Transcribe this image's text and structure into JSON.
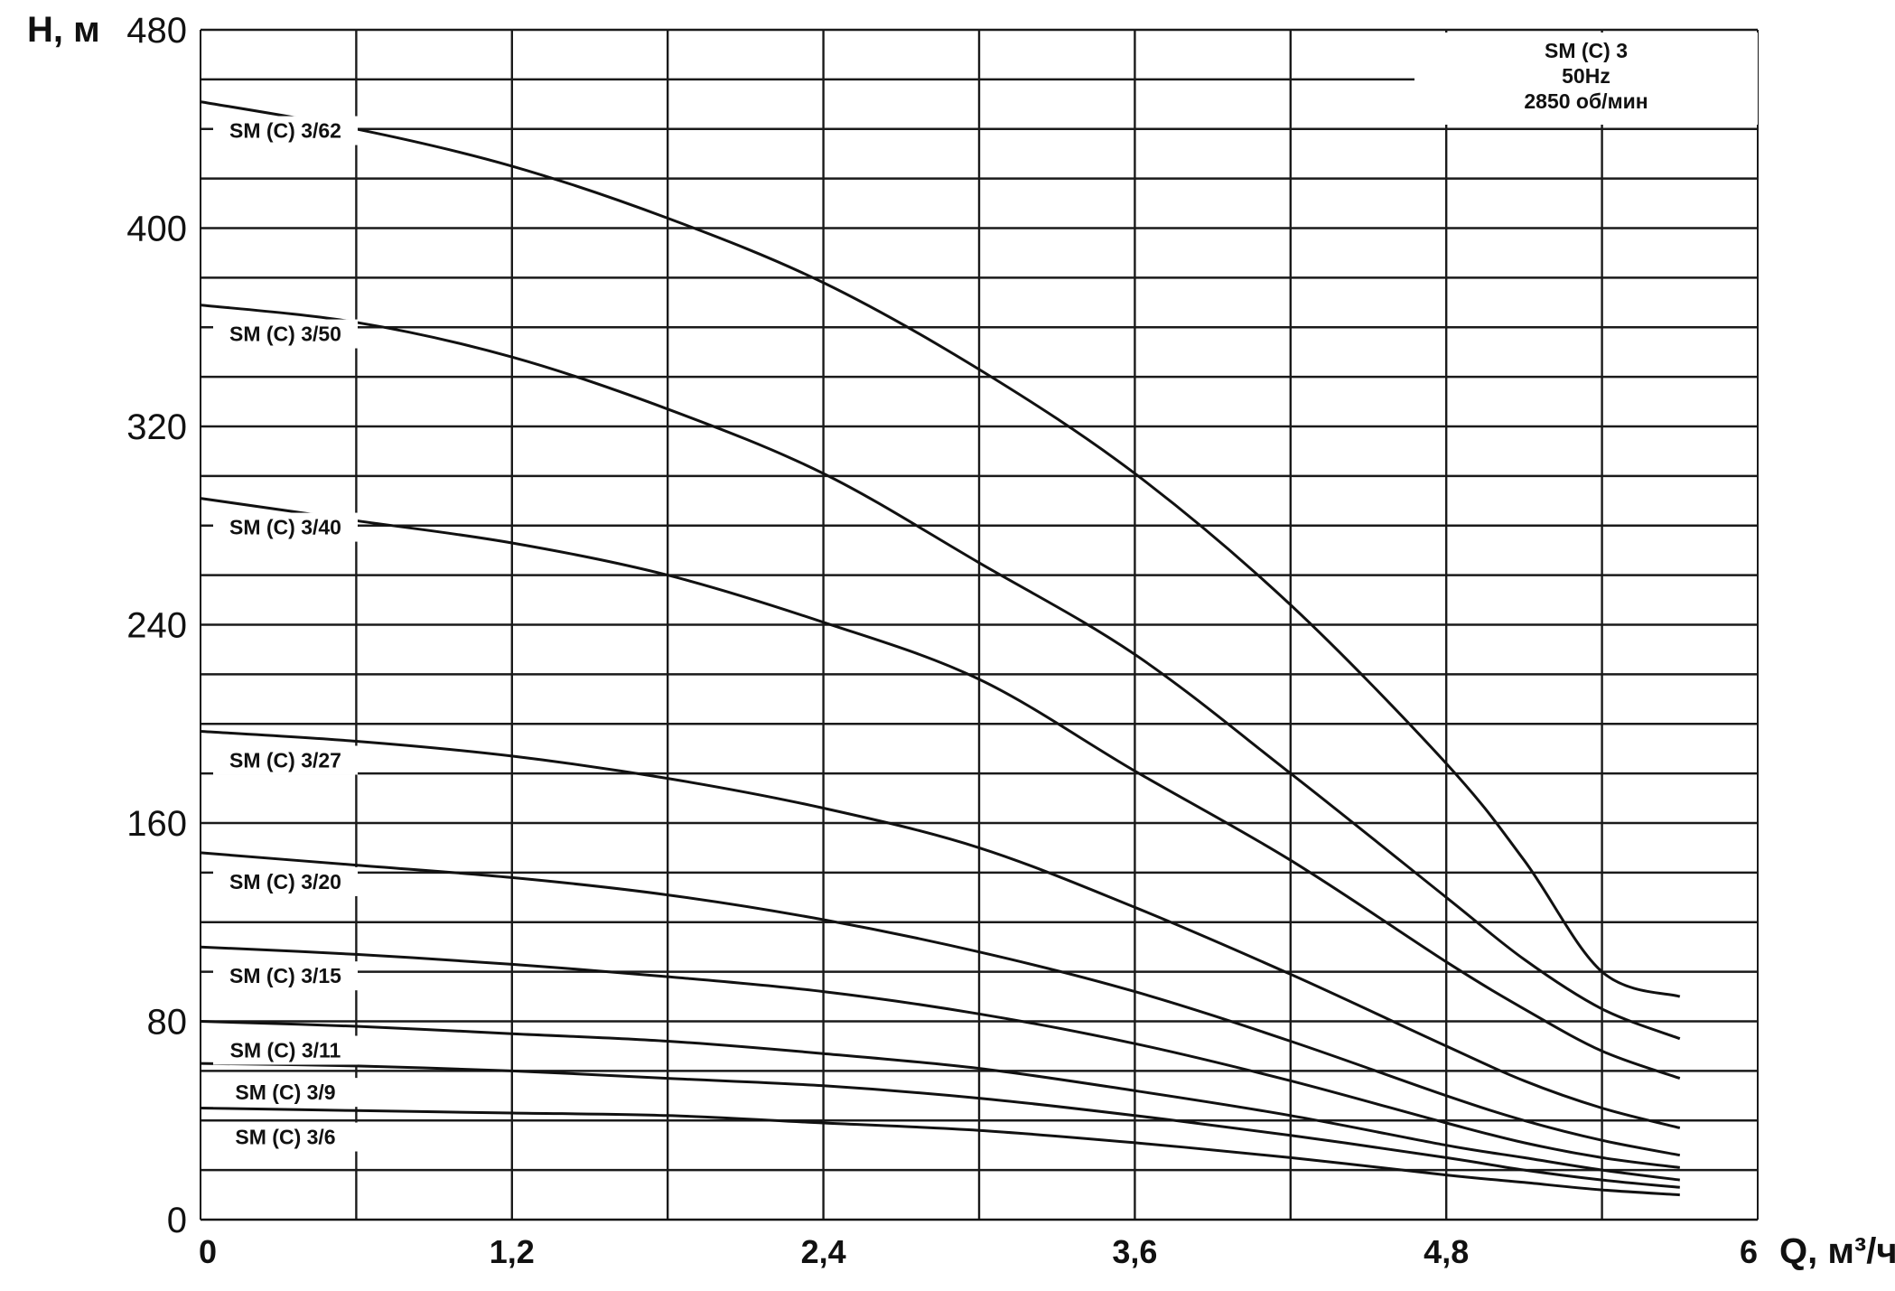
{
  "chart_data": {
    "type": "line",
    "ylabel": "H, м",
    "xlabel": "Q, м³/ч",
    "xlim": [
      0,
      6
    ],
    "ylim": [
      0,
      480
    ],
    "x_ticks": [
      "0",
      "1,2",
      "2,4",
      "3,6",
      "4,8",
      "6"
    ],
    "y_ticks": [
      "480",
      "400",
      "320",
      "240",
      "160",
      "80",
      "0"
    ],
    "grid": true,
    "info_box": {
      "lines": [
        "SM (C) 3",
        "50Hz",
        "2850 об/мин"
      ]
    },
    "series": [
      {
        "name": "SM (C) 3/62",
        "x": [
          0,
          0.6,
          1.2,
          1.8,
          2.4,
          3.0,
          3.6,
          4.2,
          4.8,
          5.1,
          5.4,
          5.7
        ],
        "y": [
          451,
          440,
          425,
          404,
          378,
          343,
          301,
          248,
          184,
          145,
          100,
          90
        ]
      },
      {
        "name": "SM (C) 3/50",
        "x": [
          0,
          0.6,
          1.2,
          1.8,
          2.4,
          3.0,
          3.6,
          4.2,
          4.8,
          5.1,
          5.4,
          5.7
        ],
        "y": [
          369,
          362,
          348,
          327,
          301,
          265,
          228,
          180,
          130,
          105,
          85,
          73
        ]
      },
      {
        "name": "SM (C) 3/40",
        "x": [
          0,
          0.6,
          1.2,
          1.8,
          2.4,
          3.0,
          3.6,
          4.2,
          4.8,
          5.1,
          5.4,
          5.7
        ],
        "y": [
          291,
          282,
          273,
          260,
          241,
          218,
          181,
          145,
          104,
          85,
          68,
          57
        ]
      },
      {
        "name": "SM (C) 3/27",
        "x": [
          0,
          0.6,
          1.2,
          1.8,
          2.4,
          3.0,
          3.6,
          4.2,
          4.8,
          5.1,
          5.4,
          5.7
        ],
        "y": [
          197,
          193,
          187,
          178,
          166,
          150,
          126,
          99,
          70,
          56,
          45,
          37
        ]
      },
      {
        "name": "SM (C) 3/20",
        "x": [
          0,
          0.6,
          1.2,
          1.8,
          2.4,
          3.0,
          3.6,
          4.2,
          4.8,
          5.1,
          5.4,
          5.7
        ],
        "y": [
          148,
          143,
          138,
          131,
          121,
          108,
          92,
          72,
          50,
          40,
          32,
          26
        ]
      },
      {
        "name": "SM (C) 3/15",
        "x": [
          0,
          0.6,
          1.2,
          1.8,
          2.4,
          3.0,
          3.6,
          4.2,
          4.8,
          5.1,
          5.4,
          5.7
        ],
        "y": [
          110,
          107,
          103,
          98,
          92,
          83,
          71,
          56,
          39,
          31,
          25,
          21
        ]
      },
      {
        "name": "SM (C) 3/11",
        "x": [
          0,
          0.6,
          1.2,
          1.8,
          2.4,
          3.0,
          3.6,
          4.2,
          4.8,
          5.1,
          5.4,
          5.7
        ],
        "y": [
          80,
          78,
          75,
          72,
          67,
          61,
          52,
          42,
          30,
          25,
          20,
          16
        ]
      },
      {
        "name": "SM (C) 3/9",
        "x": [
          0,
          0.6,
          1.2,
          1.8,
          2.4,
          3.0,
          3.6,
          4.2,
          4.8,
          5.1,
          5.4,
          5.7
        ],
        "y": [
          63,
          62,
          60,
          57,
          54,
          49,
          42,
          34,
          25,
          20,
          16,
          13
        ]
      },
      {
        "name": "SM (C) 3/6",
        "x": [
          0,
          0.6,
          1.2,
          1.8,
          2.4,
          3.0,
          3.6,
          4.2,
          4.8,
          5.1,
          5.4,
          5.7
        ],
        "y": [
          45,
          44,
          43,
          42,
          39,
          36,
          31,
          25,
          18,
          15,
          12,
          10
        ]
      }
    ]
  }
}
